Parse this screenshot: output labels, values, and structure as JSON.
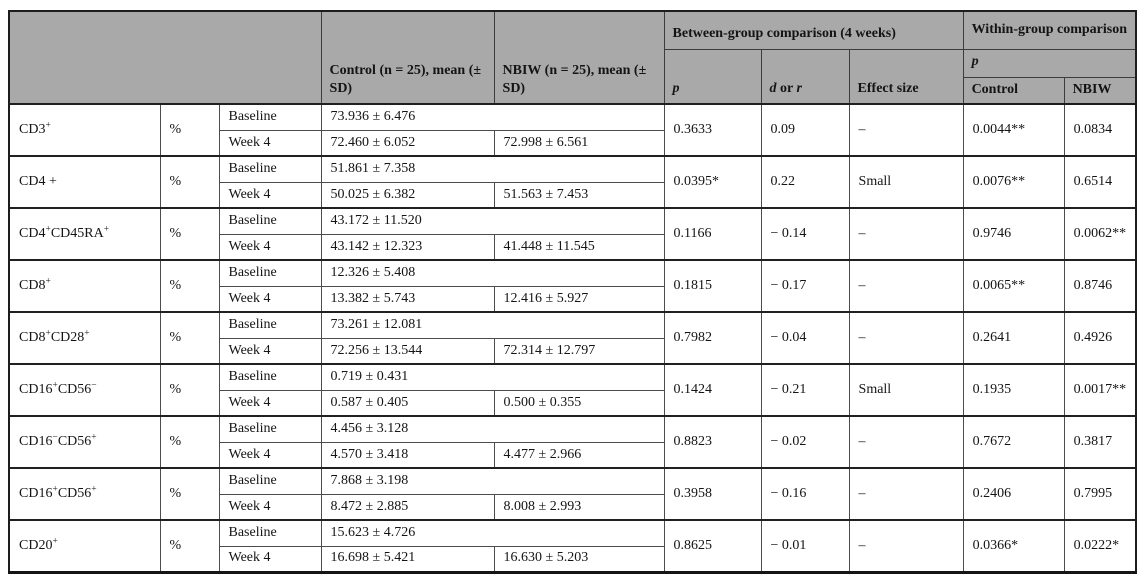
{
  "table": {
    "style": {
      "header_bg": "#a9a9a9",
      "grid_line": "#4c4c4c",
      "heavy_line": "#1d1d1d",
      "text_color": "#141414"
    },
    "header": {
      "control_mean": "Control (n = 25), mean (± SD)",
      "nbiw_mean": "NBIW (n = 25), mean (± SD)",
      "between_group": "Between-group comparison (4 weeks)",
      "within_group": "Within-group comparison",
      "p": "p",
      "d_or_r": {
        "d": "d",
        "or": " or ",
        "r": "r"
      },
      "effect_size": "Effect size",
      "within_p": "p",
      "within_control": "Control",
      "within_nbiw": "NBIW"
    },
    "row_labels": {
      "baseline": "Baseline",
      "week4": "Week 4"
    },
    "rows": [
      {
        "marker": [
          {
            "text": "CD3"
          },
          {
            "text": "+",
            "sup": true
          }
        ],
        "unit": "%",
        "baseline": "73.936 ± 6.476",
        "week4_control": "72.460 ± 6.052",
        "week4_nbiw": "72.998 ± 6.561",
        "p": "0.3633",
        "d_or_r": "0.09",
        "effect_size": "–",
        "within_control": "0.0044**",
        "within_nbiw": "0.0834"
      },
      {
        "marker": [
          {
            "text": "CD4 +"
          }
        ],
        "unit": "%",
        "baseline": "51.861 ± 7.358",
        "week4_control": "50.025 ± 6.382",
        "week4_nbiw": "51.563 ± 7.453",
        "p": "0.0395*",
        "d_or_r": "0.22",
        "effect_size": "Small",
        "within_control": "0.0076**",
        "within_nbiw": "0.6514"
      },
      {
        "marker": [
          {
            "text": "CD4"
          },
          {
            "text": "+",
            "sup": true
          },
          {
            "text": "CD45RA"
          },
          {
            "text": "+",
            "sup": true
          }
        ],
        "unit": "%",
        "baseline": "43.172 ± 11.520",
        "week4_control": "43.142 ± 12.323",
        "week4_nbiw": "41.448 ± 11.545",
        "p": "0.1166",
        "d_or_r": "− 0.14",
        "effect_size": "–",
        "within_control": "0.9746",
        "within_nbiw": "0.0062**"
      },
      {
        "marker": [
          {
            "text": "CD8"
          },
          {
            "text": "+",
            "sup": true
          }
        ],
        "unit": "%",
        "baseline": "12.326 ± 5.408",
        "week4_control": "13.382 ± 5.743",
        "week4_nbiw": "12.416 ± 5.927",
        "p": "0.1815",
        "d_or_r": "− 0.17",
        "effect_size": "–",
        "within_control": "0.0065**",
        "within_nbiw": "0.8746"
      },
      {
        "marker": [
          {
            "text": "CD8"
          },
          {
            "text": "+",
            "sup": true
          },
          {
            "text": "CD28"
          },
          {
            "text": "+",
            "sup": true
          }
        ],
        "unit": "%",
        "baseline": "73.261 ± 12.081",
        "week4_control": "72.256 ± 13.544",
        "week4_nbiw": "72.314 ± 12.797",
        "p": "0.7982",
        "d_or_r": "− 0.04",
        "effect_size": "–",
        "within_control": "0.2641",
        "within_nbiw": "0.4926"
      },
      {
        "marker": [
          {
            "text": "CD16"
          },
          {
            "text": "+",
            "sup": true
          },
          {
            "text": "CD56"
          },
          {
            "text": "−",
            "sup": true
          }
        ],
        "unit": "%",
        "baseline": "0.719 ± 0.431",
        "week4_control": "0.587 ± 0.405",
        "week4_nbiw": "0.500 ± 0.355",
        "p": "0.1424",
        "d_or_r": "− 0.21",
        "effect_size": "Small",
        "within_control": "0.1935",
        "within_nbiw": "0.0017**"
      },
      {
        "marker": [
          {
            "text": "CD16"
          },
          {
            "text": "−",
            "sup": true
          },
          {
            "text": "CD56"
          },
          {
            "text": "+",
            "sup": true
          }
        ],
        "unit": "%",
        "baseline": "4.456 ± 3.128",
        "week4_control": "4.570 ± 3.418",
        "week4_nbiw": "4.477 ± 2.966",
        "p": "0.8823",
        "d_or_r": "− 0.02",
        "effect_size": "–",
        "within_control": "0.7672",
        "within_nbiw": "0.3817"
      },
      {
        "marker": [
          {
            "text": "CD16"
          },
          {
            "text": "+",
            "sup": true
          },
          {
            "text": "CD56"
          },
          {
            "text": "+",
            "sup": true
          }
        ],
        "unit": "%",
        "baseline": "7.868 ± 3.198",
        "week4_control": "8.472 ± 2.885",
        "week4_nbiw": "8.008 ± 2.993",
        "p": "0.3958",
        "d_or_r": "− 0.16",
        "effect_size": "–",
        "within_control": "0.2406",
        "within_nbiw": "0.7995"
      },
      {
        "marker": [
          {
            "text": "CD20"
          },
          {
            "text": "+",
            "sup": true
          }
        ],
        "unit": "%",
        "baseline": "15.623 ± 4.726",
        "week4_control": "16.698 ± 5.421",
        "week4_nbiw": "16.630 ± 5.203",
        "p": "0.8625",
        "d_or_r": "− 0.01",
        "effect_size": "–",
        "within_control": "0.0366*",
        "within_nbiw": "0.0222*"
      }
    ]
  }
}
